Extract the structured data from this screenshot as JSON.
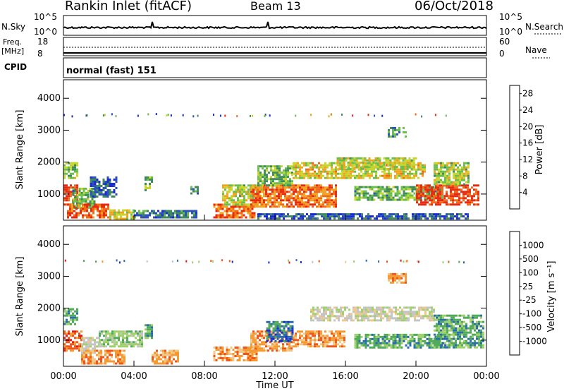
{
  "header": {
    "station": "Rankin Inlet (fitACF)",
    "beam": "Beam 13",
    "date": "06/Oct/2018"
  },
  "noise_panel": {
    "left_label": "N.Sky",
    "right_label": "N.Search",
    "tick_hi": "10^5",
    "tick_lo": "10^0"
  },
  "freq_panel": {
    "left_label_1": "Freq.",
    "left_label_2": "[MHz]",
    "right_label": "Nave",
    "left_tick_hi": "18",
    "left_tick_lo": "8",
    "right_tick_hi": "60",
    "right_tick_lo": "0"
  },
  "cpid_panel": {
    "label": "CPID",
    "mode": "normal (fast) 151"
  },
  "colors": {
    "power": [
      "#1a2bd6",
      "#2a52b8",
      "#3f8c5a",
      "#6abf4b",
      "#c7d62c",
      "#f2a21e",
      "#f06a18",
      "#e82a10"
    ],
    "velocity": [
      "#e81a10",
      "#f0551a",
      "#f59a30",
      "#f2c88a",
      "#c4c4c4",
      "#9fd06a",
      "#4faa5a",
      "#2a6cb0",
      "#1a2bd6"
    ]
  },
  "chart_data": [
    {
      "type": "heatmap",
      "parameter": "Power",
      "ylabel": "Slant Range [km]",
      "xlabel": "Time UT",
      "x_ticks": [
        "00:00",
        "04:00",
        "08:00",
        "12:00",
        "16:00",
        "20:00",
        "00:00"
      ],
      "y_ticks": [
        "1000",
        "2000",
        "3000",
        "4000"
      ],
      "xlim_hours": [
        0,
        24
      ],
      "ylim_km": [
        180,
        4580
      ],
      "colorbar_label": "Power [dB]",
      "colorbar_ticks": [
        "4",
        "8",
        "12",
        "16",
        "20",
        "24",
        "28"
      ],
      "colorbar_range": [
        0,
        30
      ],
      "regions": [
        {
          "t": [
            0.0,
            0.8
          ],
          "r": [
            700,
            1300
          ],
          "level": 28
        },
        {
          "t": [
            0.0,
            0.8
          ],
          "r": [
            1500,
            2000
          ],
          "level": 14
        },
        {
          "t": [
            0.5,
            1.8
          ],
          "r": [
            600,
            1200
          ],
          "level": 12
        },
        {
          "t": [
            0.2,
            2.6
          ],
          "r": [
            250,
            700
          ],
          "level": 26
        },
        {
          "t": [
            2.6,
            4.0
          ],
          "r": [
            250,
            520
          ],
          "level": 18
        },
        {
          "t": [
            1.5,
            3.0
          ],
          "r": [
            950,
            1550
          ],
          "level": 6
        },
        {
          "t": [
            4.0,
            7.5
          ],
          "r": [
            250,
            500
          ],
          "level": 8
        },
        {
          "t": [
            4.6,
            5.0
          ],
          "r": [
            1100,
            1550
          ],
          "level": 12
        },
        {
          "t": [
            7.2,
            7.6
          ],
          "r": [
            1000,
            1250
          ],
          "level": 10
        },
        {
          "t": [
            8.5,
            10.8
          ],
          "r": [
            300,
            700
          ],
          "level": 24
        },
        {
          "t": [
            9.0,
            11.3
          ],
          "r": [
            700,
            1300
          ],
          "level": 16
        },
        {
          "t": [
            10.6,
            15.5
          ],
          "r": [
            600,
            1300
          ],
          "level": 24
        },
        {
          "t": [
            11.0,
            13.0
          ],
          "r": [
            1300,
            1900
          ],
          "level": 13
        },
        {
          "t": [
            13.0,
            20.5
          ],
          "r": [
            1500,
            2000
          ],
          "level": 18
        },
        {
          "t": [
            15.5,
            20.0
          ],
          "r": [
            1800,
            2150
          ],
          "level": 16
        },
        {
          "t": [
            16.5,
            21.5
          ],
          "r": [
            800,
            1250
          ],
          "level": 12
        },
        {
          "t": [
            20.0,
            23.5
          ],
          "r": [
            700,
            1300
          ],
          "level": 28
        },
        {
          "t": [
            21.0,
            23.0
          ],
          "r": [
            1300,
            2000
          ],
          "level": 15
        },
        {
          "t": [
            18.4,
            19.4
          ],
          "r": [
            2800,
            3100
          ],
          "level": 10
        },
        {
          "t": [
            11.0,
            23.0
          ],
          "r": [
            250,
            400
          ],
          "level": 6
        }
      ]
    },
    {
      "type": "heatmap",
      "parameter": "Velocity",
      "ylabel": "Slant Range [km]",
      "xlabel": "Time UT",
      "x_ticks": [
        "00:00",
        "04:00",
        "08:00",
        "12:00",
        "16:00",
        "20:00",
        "00:00"
      ],
      "y_ticks": [
        "1000",
        "2000",
        "3000",
        "4000"
      ],
      "xlim_hours": [
        0,
        24
      ],
      "ylim_km": [
        180,
        4580
      ],
      "colorbar_label": "Velocity [m s⁻¹]",
      "colorbar_ticks": [
        "1000",
        "500",
        "100",
        "25",
        "-25",
        "-100",
        "-500",
        "-1000"
      ],
      "regions": [
        {
          "t": [
            0.0,
            1.0
          ],
          "r": [
            700,
            1300
          ],
          "level": 1
        },
        {
          "t": [
            0.0,
            0.8
          ],
          "r": [
            1500,
            2000
          ],
          "level": 6
        },
        {
          "t": [
            1.0,
            2.0
          ],
          "r": [
            600,
            1100
          ],
          "level": 4
        },
        {
          "t": [
            1.0,
            3.5
          ],
          "r": [
            300,
            700
          ],
          "level": 2
        },
        {
          "t": [
            2.0,
            4.5
          ],
          "r": [
            800,
            1300
          ],
          "level": 5
        },
        {
          "t": [
            4.6,
            5.0
          ],
          "r": [
            1100,
            1500
          ],
          "level": 6
        },
        {
          "t": [
            5.0,
            6.5
          ],
          "r": [
            300,
            700
          ],
          "level": 2
        },
        {
          "t": [
            8.5,
            11.0
          ],
          "r": [
            400,
            800
          ],
          "level": 2
        },
        {
          "t": [
            10.6,
            13.0
          ],
          "r": [
            700,
            1300
          ],
          "level": 2
        },
        {
          "t": [
            11.5,
            13.0
          ],
          "r": [
            1000,
            1600
          ],
          "level": 7
        },
        {
          "t": [
            13.0,
            16.0
          ],
          "r": [
            800,
            1300
          ],
          "level": 2
        },
        {
          "t": [
            14.0,
            21.0
          ],
          "r": [
            1600,
            2050
          ],
          "level": 4
        },
        {
          "t": [
            16.5,
            21.5
          ],
          "r": [
            800,
            1200
          ],
          "level": 6
        },
        {
          "t": [
            21.0,
            23.8
          ],
          "r": [
            800,
            1800
          ],
          "level": 6
        },
        {
          "t": [
            18.4,
            19.4
          ],
          "r": [
            2800,
            3100
          ],
          "level": 2
        }
      ]
    }
  ]
}
